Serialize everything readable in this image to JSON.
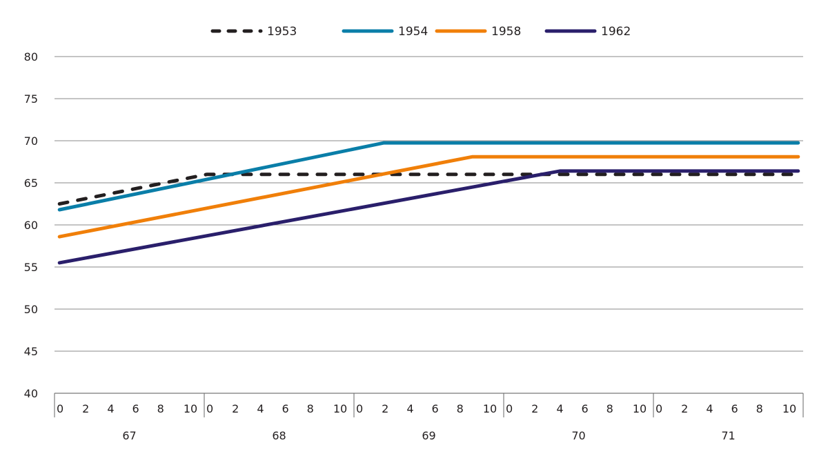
{
  "chart_data": {
    "type": "line",
    "title": "",
    "xlabel": "",
    "ylabel": "",
    "ylim": [
      40,
      80
    ],
    "yticks": [
      40,
      45,
      50,
      55,
      60,
      65,
      70,
      75,
      80
    ],
    "grid": "horizontal",
    "legend_position": "top-center",
    "x_unit": "months since age 67, 0 months",
    "xlim": [
      0,
      60
    ],
    "x_groups": [
      {
        "label": "67",
        "start": 0
      },
      {
        "label": "68",
        "start": 12
      },
      {
        "label": "69",
        "start": 24
      },
      {
        "label": "70",
        "start": 36
      },
      {
        "label": "71",
        "start": 48
      }
    ],
    "x_minor_ticks": [
      "0",
      "2",
      "4",
      "6",
      "8",
      "10"
    ],
    "series": [
      {
        "name": "1953",
        "color": "#231f20",
        "dash": true,
        "points": [
          [
            0.4,
            62.5
          ],
          [
            12.2,
            66.0
          ],
          [
            59.6,
            66.0
          ]
        ]
      },
      {
        "name": "1954",
        "color": "#0a7ea8",
        "dash": false,
        "points": [
          [
            0.4,
            61.8
          ],
          [
            26.4,
            69.75
          ],
          [
            59.6,
            69.75
          ]
        ]
      },
      {
        "name": "1958",
        "color": "#f07f09",
        "dash": false,
        "points": [
          [
            0.4,
            58.6
          ],
          [
            33.5,
            68.1
          ],
          [
            59.6,
            68.1
          ]
        ]
      },
      {
        "name": "1962",
        "color": "#2a1f6b",
        "dash": false,
        "points": [
          [
            0.4,
            55.5
          ],
          [
            40.5,
            66.4
          ],
          [
            59.6,
            66.4
          ]
        ]
      }
    ]
  }
}
